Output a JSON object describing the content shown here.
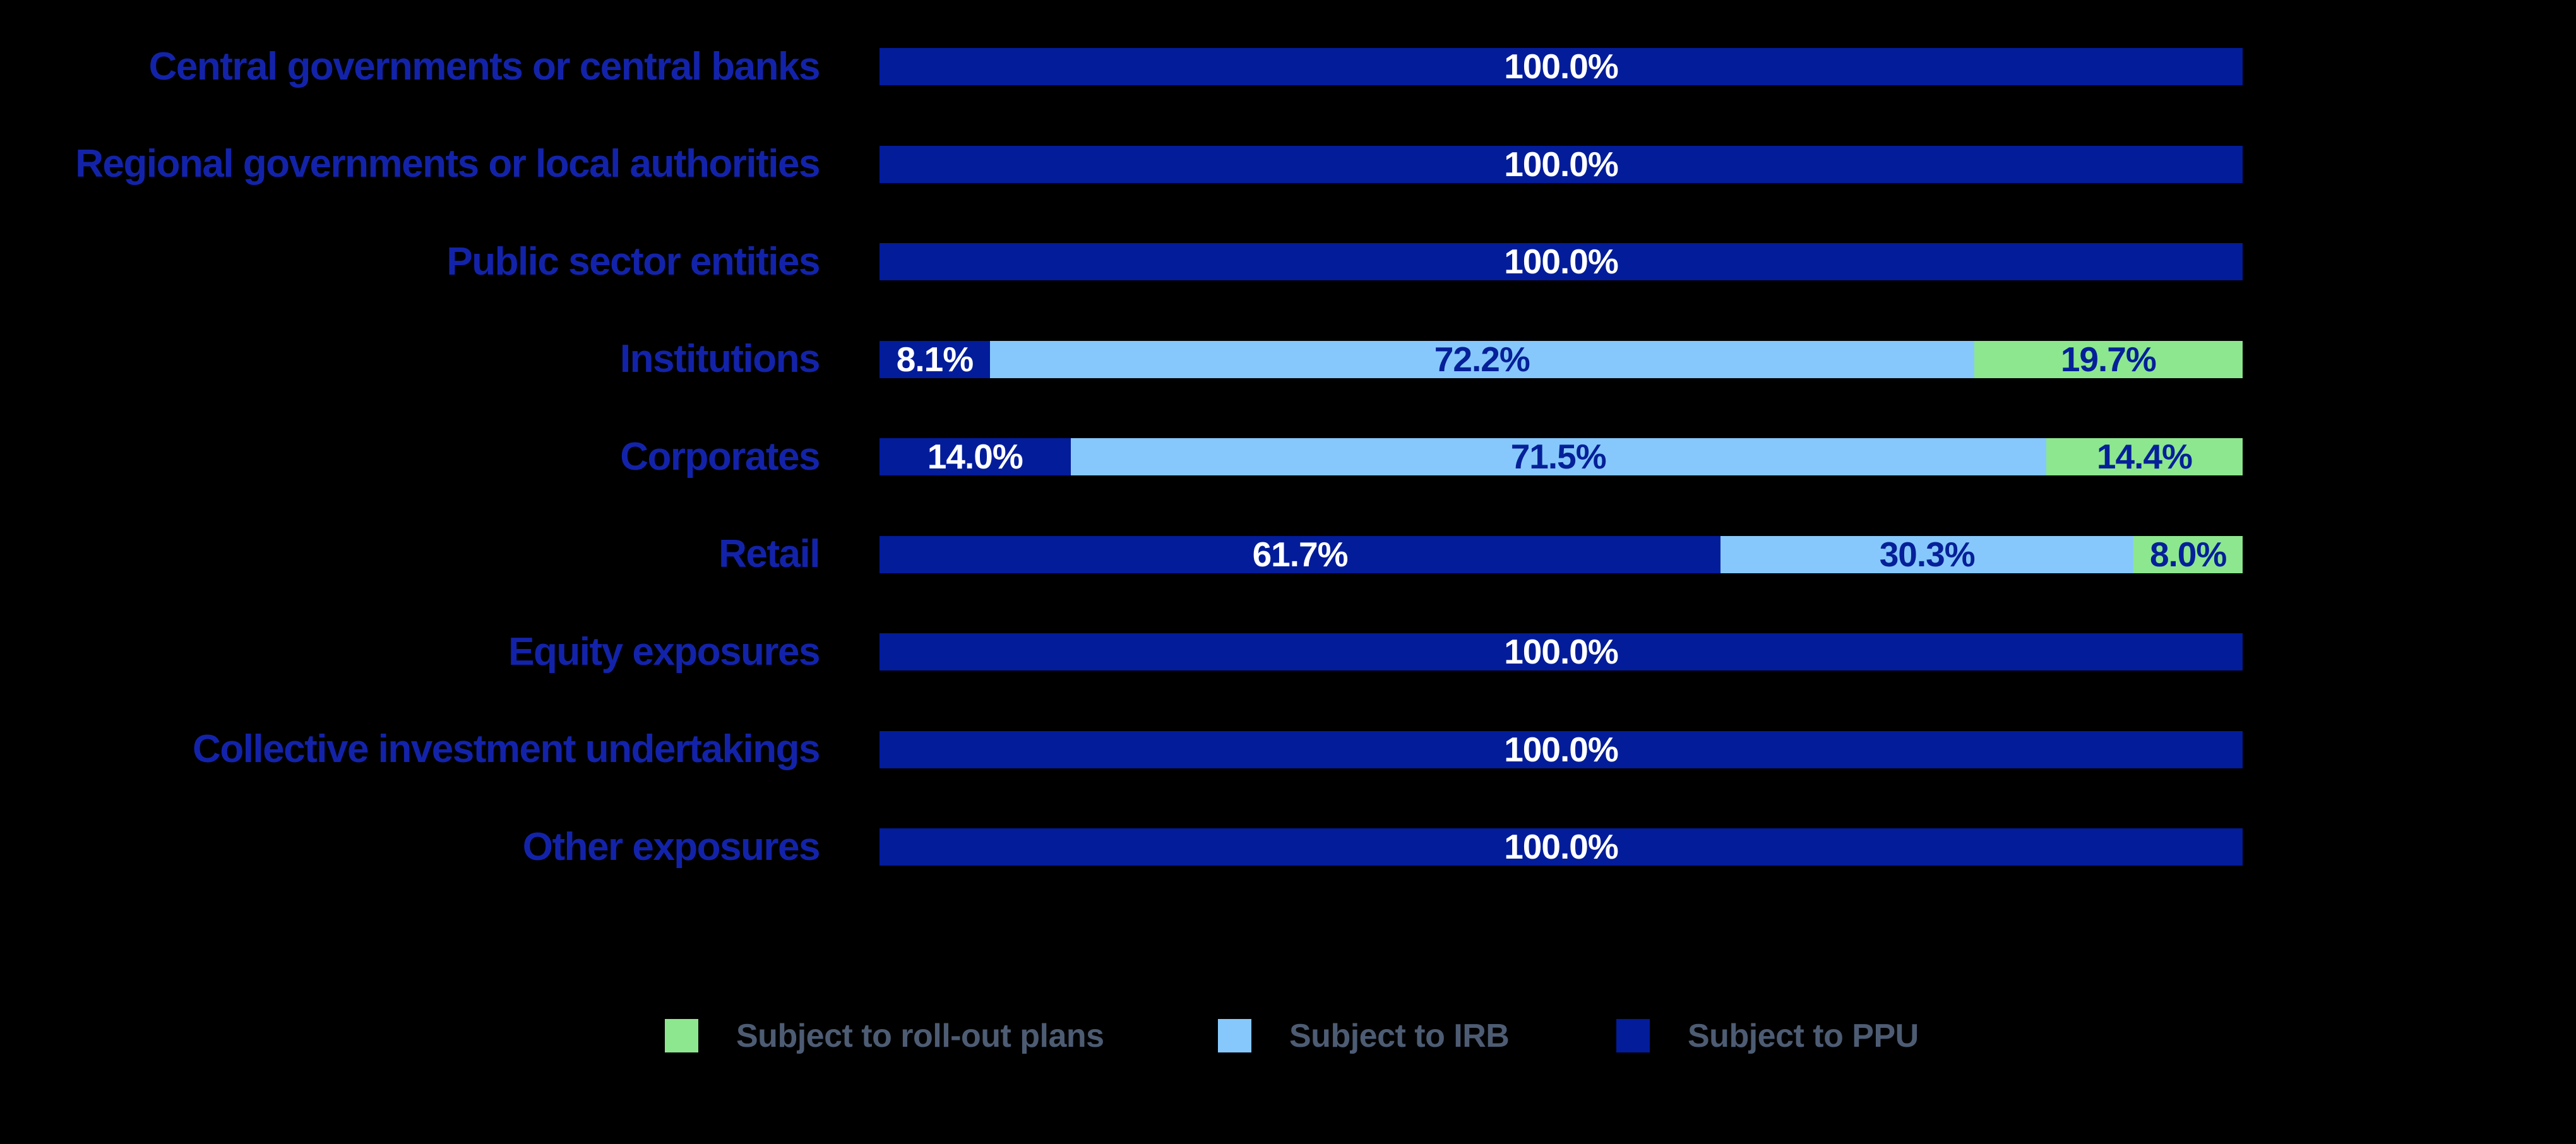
{
  "background_color": "#000000",
  "category_label_color": "#1323A9",
  "chart_data": {
    "type": "bar",
    "orientation": "horizontal",
    "stacked": true,
    "normalized_to_100": true,
    "unit": "%",
    "title": "",
    "xlabel": "",
    "ylabel": "",
    "xlim": [
      0,
      100
    ],
    "grid": false,
    "axes_visible": false,
    "value_labels": "inside-segment, one decimal place with % sign",
    "categories": [
      "Central governments or central banks",
      "Regional governments or local authorities",
      "Public sector entities",
      "Institutions",
      "Corporates",
      "Retail",
      "Equity exposures",
      "Collective investment undertakings",
      "Other exposures"
    ],
    "series": [
      {
        "name": "Subject to PPU",
        "color": "#021C9A",
        "value_text_color": "#FFFFFF",
        "values": [
          100.0,
          100.0,
          100.0,
          8.1,
          14.0,
          61.7,
          100.0,
          100.0,
          100.0
        ]
      },
      {
        "name": "Subject to IRB",
        "color": "#86C8FB",
        "value_text_color": "#052099",
        "values": [
          0,
          0,
          0,
          72.2,
          71.5,
          30.3,
          0,
          0,
          0
        ]
      },
      {
        "name": "Subject to roll-out plans",
        "color": "#8DE78E",
        "value_text_color": "#052099",
        "values": [
          0,
          0,
          0,
          19.7,
          14.4,
          8.0,
          0,
          0,
          0
        ]
      }
    ],
    "legend_position": "bottom"
  },
  "legend": {
    "text_color": "#4D5C73",
    "items": [
      {
        "label": "Subject to roll-out plans",
        "color": "#8DE78E"
      },
      {
        "label": "Subject to IRB",
        "color": "#86C8FB"
      },
      {
        "label": "Subject to PPU",
        "color": "#021C9A"
      }
    ]
  }
}
